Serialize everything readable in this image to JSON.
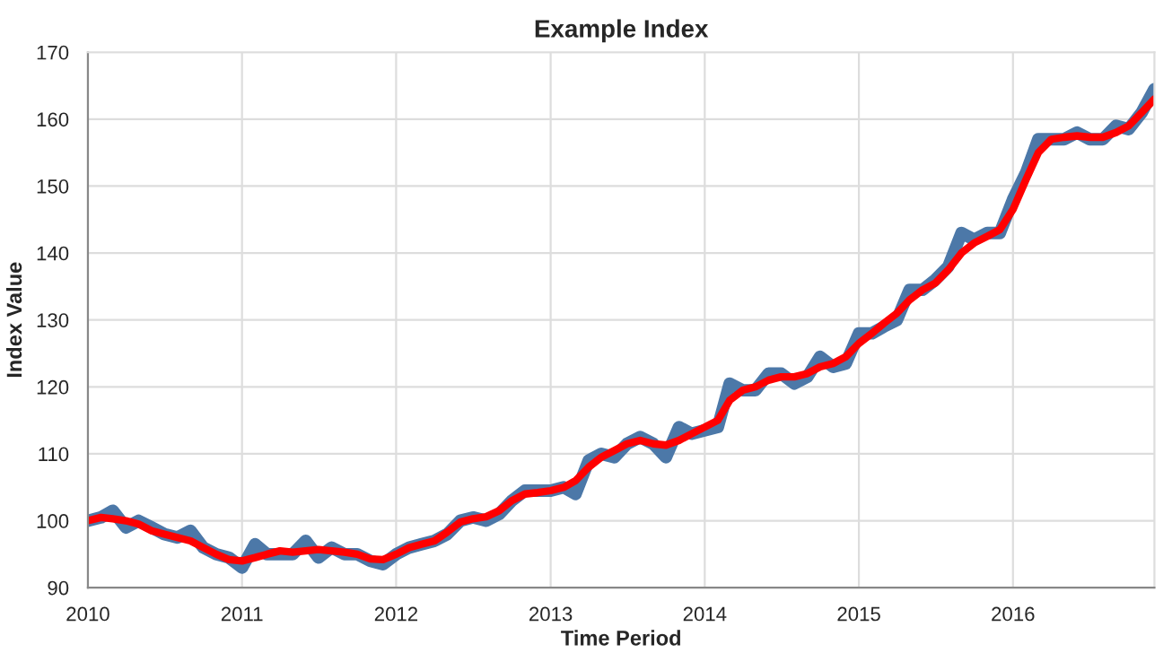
{
  "chart_data": {
    "type": "line",
    "title": "Example Index",
    "xlabel": "Time Period",
    "ylabel": "Index Value",
    "x": [
      "2010-01",
      "2010-02",
      "2010-03",
      "2010-04",
      "2010-05",
      "2010-06",
      "2010-07",
      "2010-08",
      "2010-09",
      "2010-10",
      "2010-11",
      "2010-12",
      "2011-01",
      "2011-02",
      "2011-03",
      "2011-04",
      "2011-05",
      "2011-06",
      "2011-07",
      "2011-08",
      "2011-09",
      "2011-10",
      "2011-11",
      "2011-12",
      "2012-01",
      "2012-02",
      "2012-03",
      "2012-04",
      "2012-05",
      "2012-06",
      "2012-07",
      "2012-08",
      "2012-09",
      "2012-10",
      "2012-11",
      "2012-12",
      "2013-01",
      "2013-02",
      "2013-03",
      "2013-04",
      "2013-05",
      "2013-06",
      "2013-07",
      "2013-08",
      "2013-09",
      "2013-10",
      "2013-11",
      "2013-12",
      "2014-01",
      "2014-02",
      "2014-03",
      "2014-04",
      "2014-05",
      "2014-06",
      "2014-07",
      "2014-08",
      "2014-09",
      "2014-10",
      "2014-11",
      "2014-12",
      "2015-01",
      "2015-02",
      "2015-03",
      "2015-04",
      "2015-05",
      "2015-06",
      "2015-07",
      "2015-08",
      "2015-09",
      "2015-10",
      "2015-11",
      "2015-12",
      "2016-01",
      "2016-02",
      "2016-03",
      "2016-04",
      "2016-05",
      "2016-06",
      "2016-07",
      "2016-08",
      "2016-09",
      "2016-10",
      "2016-11",
      "2016-12"
    ],
    "series": [
      {
        "color": "#4c78a8",
        "values": [
          100,
          100.5,
          101.5,
          99,
          100,
          99,
          98,
          97.5,
          98.5,
          96,
          95,
          94.5,
          93,
          96.5,
          95,
          95,
          95,
          97,
          94.5,
          96,
          95,
          95,
          94,
          93.5,
          95,
          96,
          96.5,
          97,
          98,
          100,
          100.5,
          100,
          101,
          103,
          104.5,
          104.5,
          104.5,
          105,
          104,
          109,
          110,
          109.5,
          111.5,
          112.5,
          111.5,
          109.5,
          114,
          113,
          113.5,
          114,
          120.5,
          119.5,
          119.5,
          122,
          122,
          120.5,
          121.5,
          124.5,
          123,
          123.5,
          128,
          128,
          129,
          130,
          134.5,
          134.5,
          136,
          138,
          143,
          142,
          143,
          143,
          148,
          152,
          157,
          157,
          157,
          158,
          157,
          157,
          159,
          158.5,
          161,
          164.5
        ]
      },
      {
        "color": "#ff0000",
        "values": [
          100,
          100.5,
          100.3,
          100,
          99.5,
          98.5,
          98,
          97.5,
          97,
          96,
          95,
          94.2,
          94,
          94.5,
          95,
          95.5,
          95.3,
          95.5,
          95.7,
          95.5,
          95.3,
          95,
          94.3,
          94.2,
          95,
          96,
          96.5,
          97,
          98.3,
          99.8,
          100.3,
          100.6,
          101.5,
          103,
          104,
          104.2,
          104.5,
          105,
          106,
          108,
          109.5,
          110.5,
          111.5,
          112,
          111.5,
          111.3,
          112,
          113,
          114,
          115,
          118,
          119.5,
          120,
          121,
          121.5,
          121.5,
          122,
          123,
          123.5,
          124.5,
          126.5,
          128,
          129.5,
          131,
          133,
          134.5,
          135.5,
          137.5,
          140,
          141.5,
          142.5,
          143.5,
          146.5,
          151,
          155,
          157,
          157.3,
          157.5,
          157.3,
          157.3,
          158,
          159,
          161,
          163
        ]
      }
    ],
    "xlim": [
      "2010-01",
      "2016-12"
    ],
    "xticks": [
      "2010",
      "2011",
      "2012",
      "2013",
      "2014",
      "2015",
      "2016"
    ],
    "ylim": [
      90,
      170
    ],
    "yticks": [
      90,
      100,
      110,
      120,
      130,
      140,
      150,
      160,
      170
    ],
    "grid": true
  }
}
